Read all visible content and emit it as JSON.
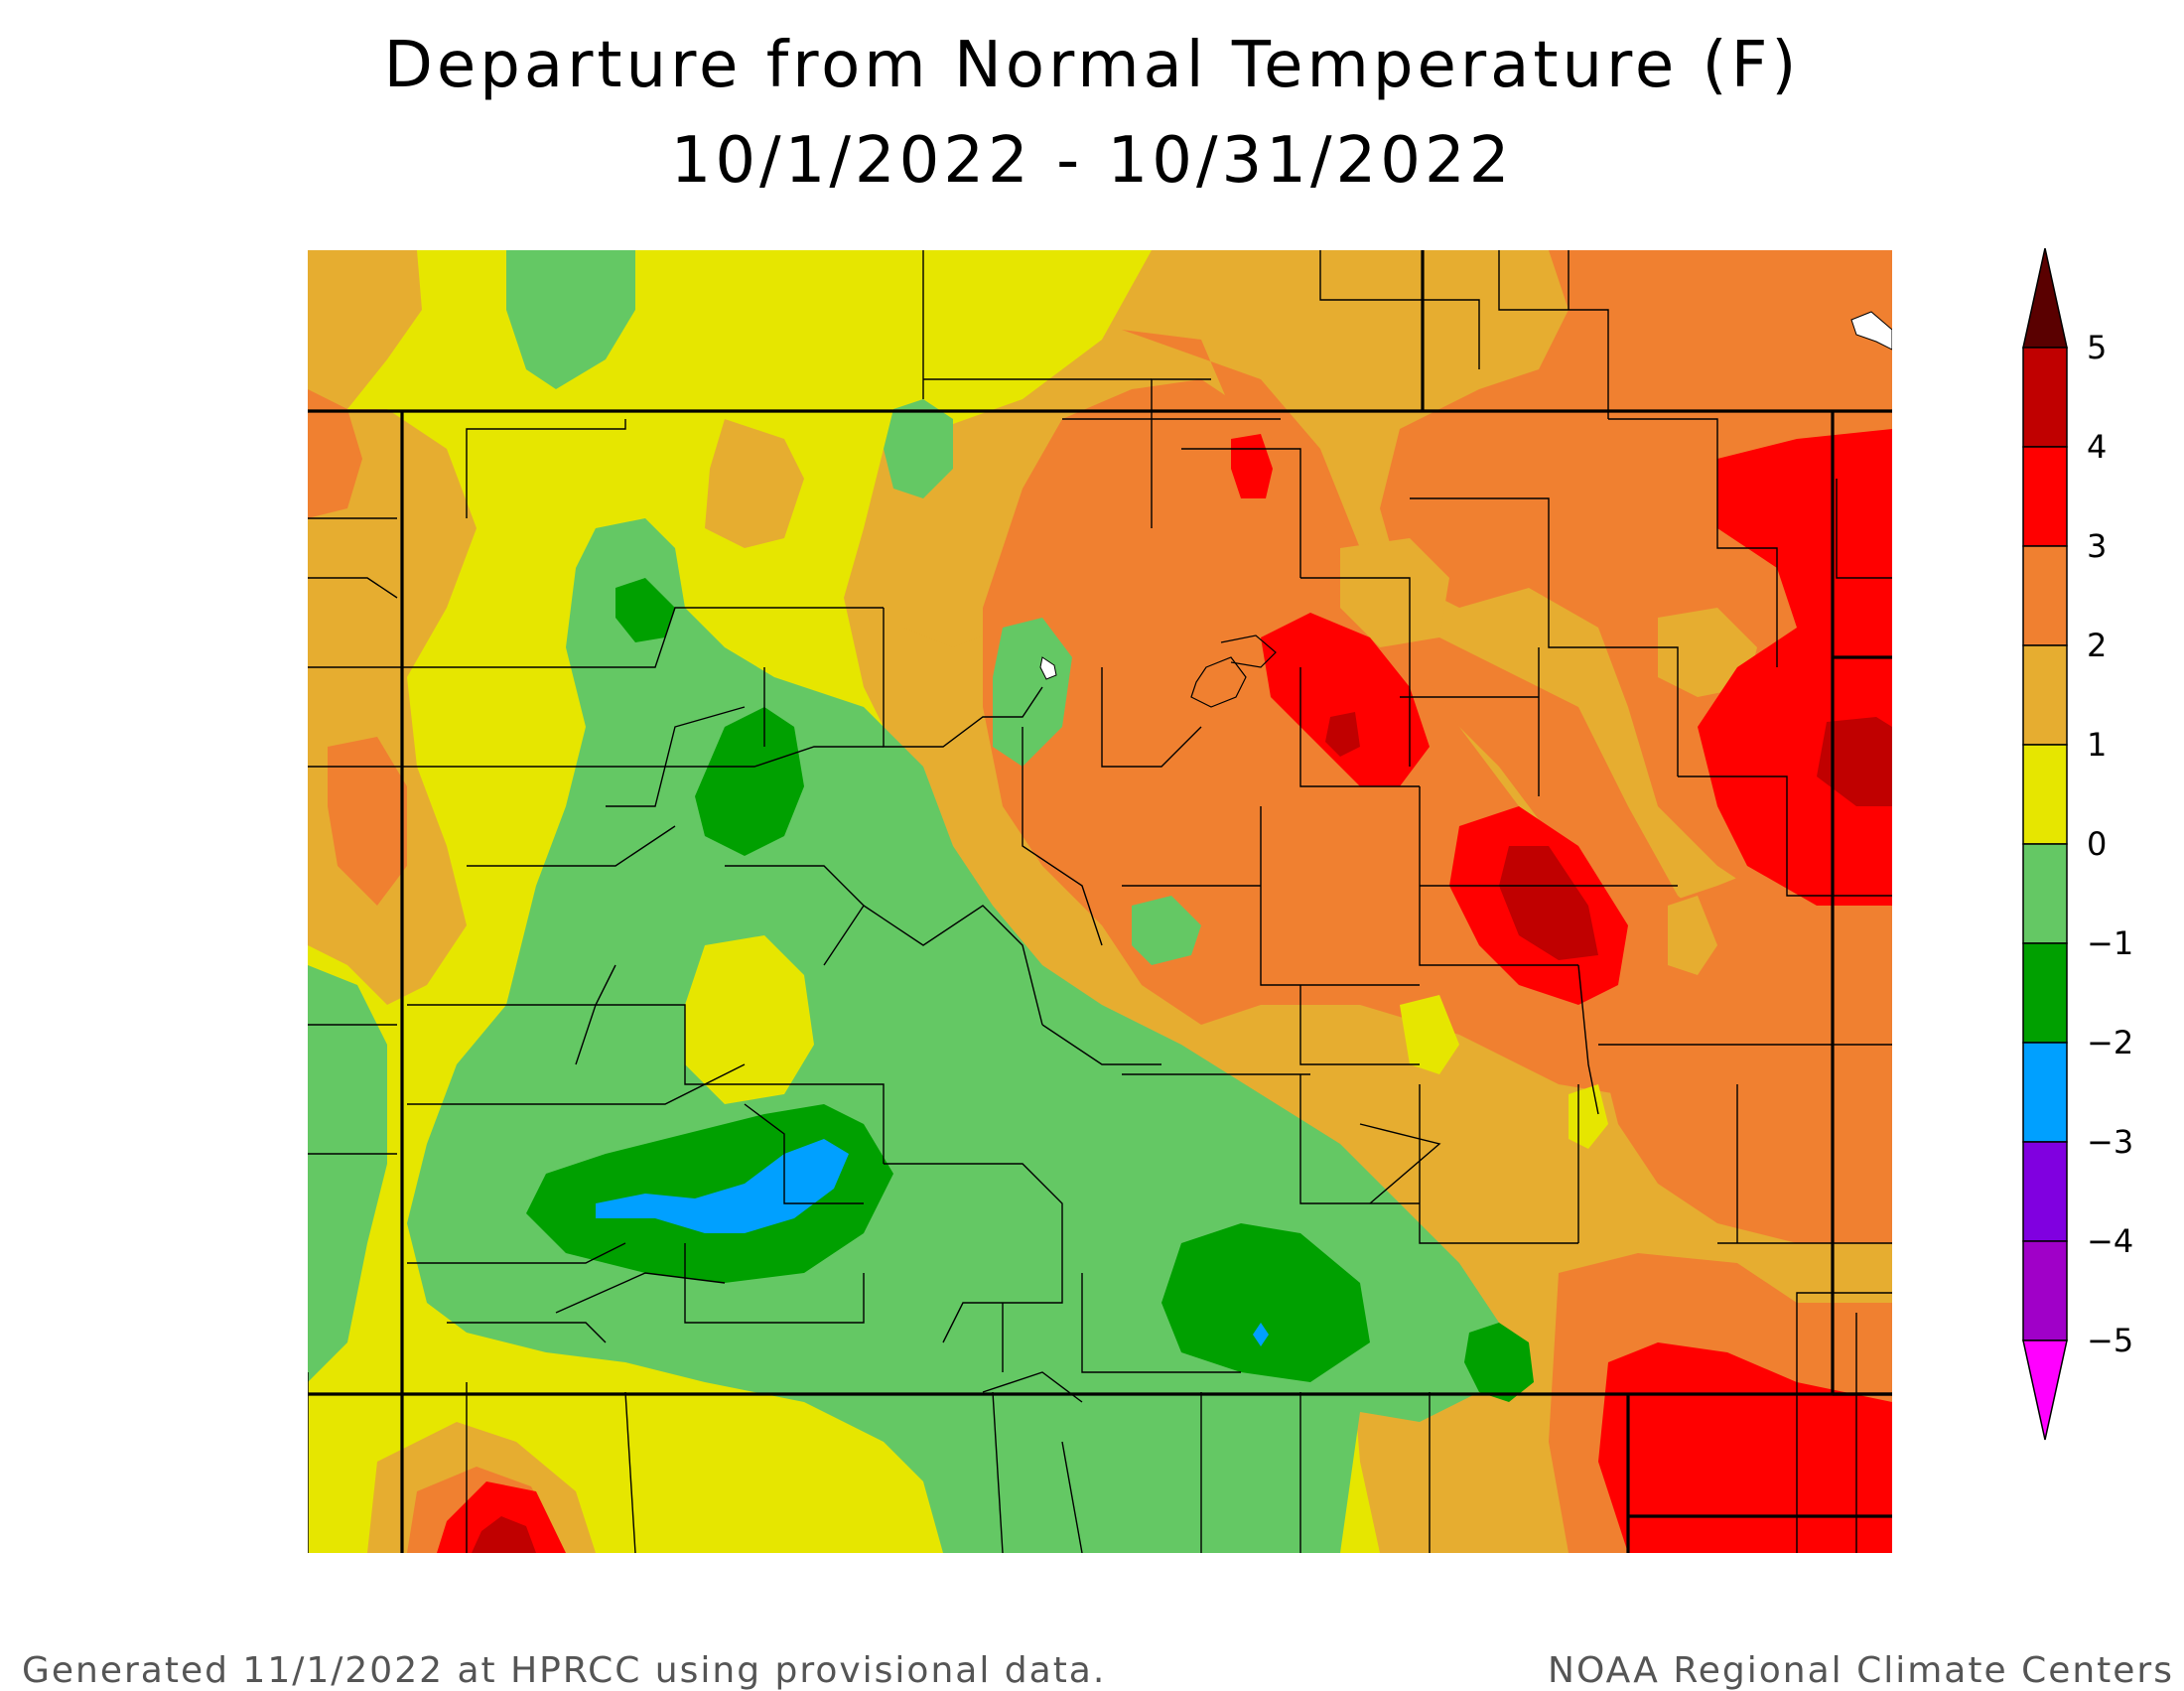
{
  "title": {
    "line1": "Departure from Normal Temperature (F)",
    "line2": "10/1/2022 - 10/31/2022"
  },
  "legend": {
    "unit": "F",
    "tick_labels": [
      "5",
      "4",
      "3",
      "2",
      "1",
      "0",
      "−1",
      "−2",
      "−3",
      "−4",
      "−5"
    ],
    "bins": [
      {
        "range": "above 5",
        "color": "#5a0000"
      },
      {
        "range": "4 to 5",
        "color": "#c00000"
      },
      {
        "range": "3 to 4",
        "color": "#ff0000"
      },
      {
        "range": "2 to 3",
        "color": "#f08030"
      },
      {
        "range": "1 to 2",
        "color": "#e6ad30"
      },
      {
        "range": "0 to 1",
        "color": "#e6e600"
      },
      {
        "range": "-1 to 0",
        "color": "#64c864"
      },
      {
        "range": "-2 to -1",
        "color": "#00a000"
      },
      {
        "range": "-3 to -2",
        "color": "#00a0ff"
      },
      {
        "range": "-4 to -3",
        "color": "#8000e0"
      },
      {
        "range": "-5 to -4",
        "color": "#a000c8"
      },
      {
        "range": "below -5",
        "color": "#ff00ff"
      }
    ]
  },
  "footer": {
    "left": "Generated 11/1/2022 at HPRCC using provisional data.",
    "right": "NOAA Regional Climate Centers"
  }
}
